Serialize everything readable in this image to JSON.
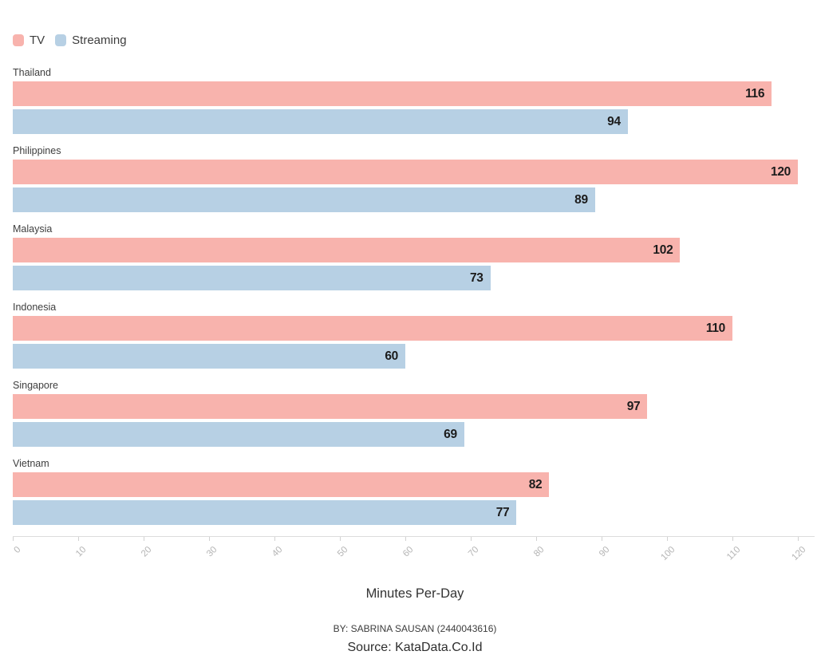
{
  "chart_data": {
    "type": "bar",
    "orientation": "horizontal",
    "categories": [
      "Thailand",
      "Philippines",
      "Malaysia",
      "Indonesia",
      "Singapore",
      "Vietnam"
    ],
    "series": [
      {
        "name": "TV",
        "color": "#f8b3ad",
        "values": [
          116,
          120,
          102,
          110,
          97,
          82
        ]
      },
      {
        "name": "Streaming",
        "color": "#b7d0e4",
        "values": [
          94,
          89,
          73,
          60,
          69,
          77
        ]
      }
    ],
    "title": "",
    "xlabel": "Minutes Per-Day",
    "ylabel": "",
    "xlim": [
      0,
      120
    ],
    "xticks": [
      0,
      10,
      20,
      30,
      40,
      50,
      60,
      70,
      80,
      90,
      100,
      110,
      120
    ],
    "grid": false,
    "legend_position": "top-left",
    "value_labels": "inside-end",
    "value_label_color": "#1c1c1c",
    "tick_label_color": "#b5b5b5",
    "axis_line_color": "#dcdcdc"
  },
  "legend": {
    "items": [
      {
        "label": "TV",
        "color": "#f8b3ad"
      },
      {
        "label": "Streaming",
        "color": "#b7d0e4"
      }
    ]
  },
  "footer": {
    "byline": "BY: SABRINA SAUSAN (2440043616)",
    "source": "Source: KataData.Co.Id"
  }
}
